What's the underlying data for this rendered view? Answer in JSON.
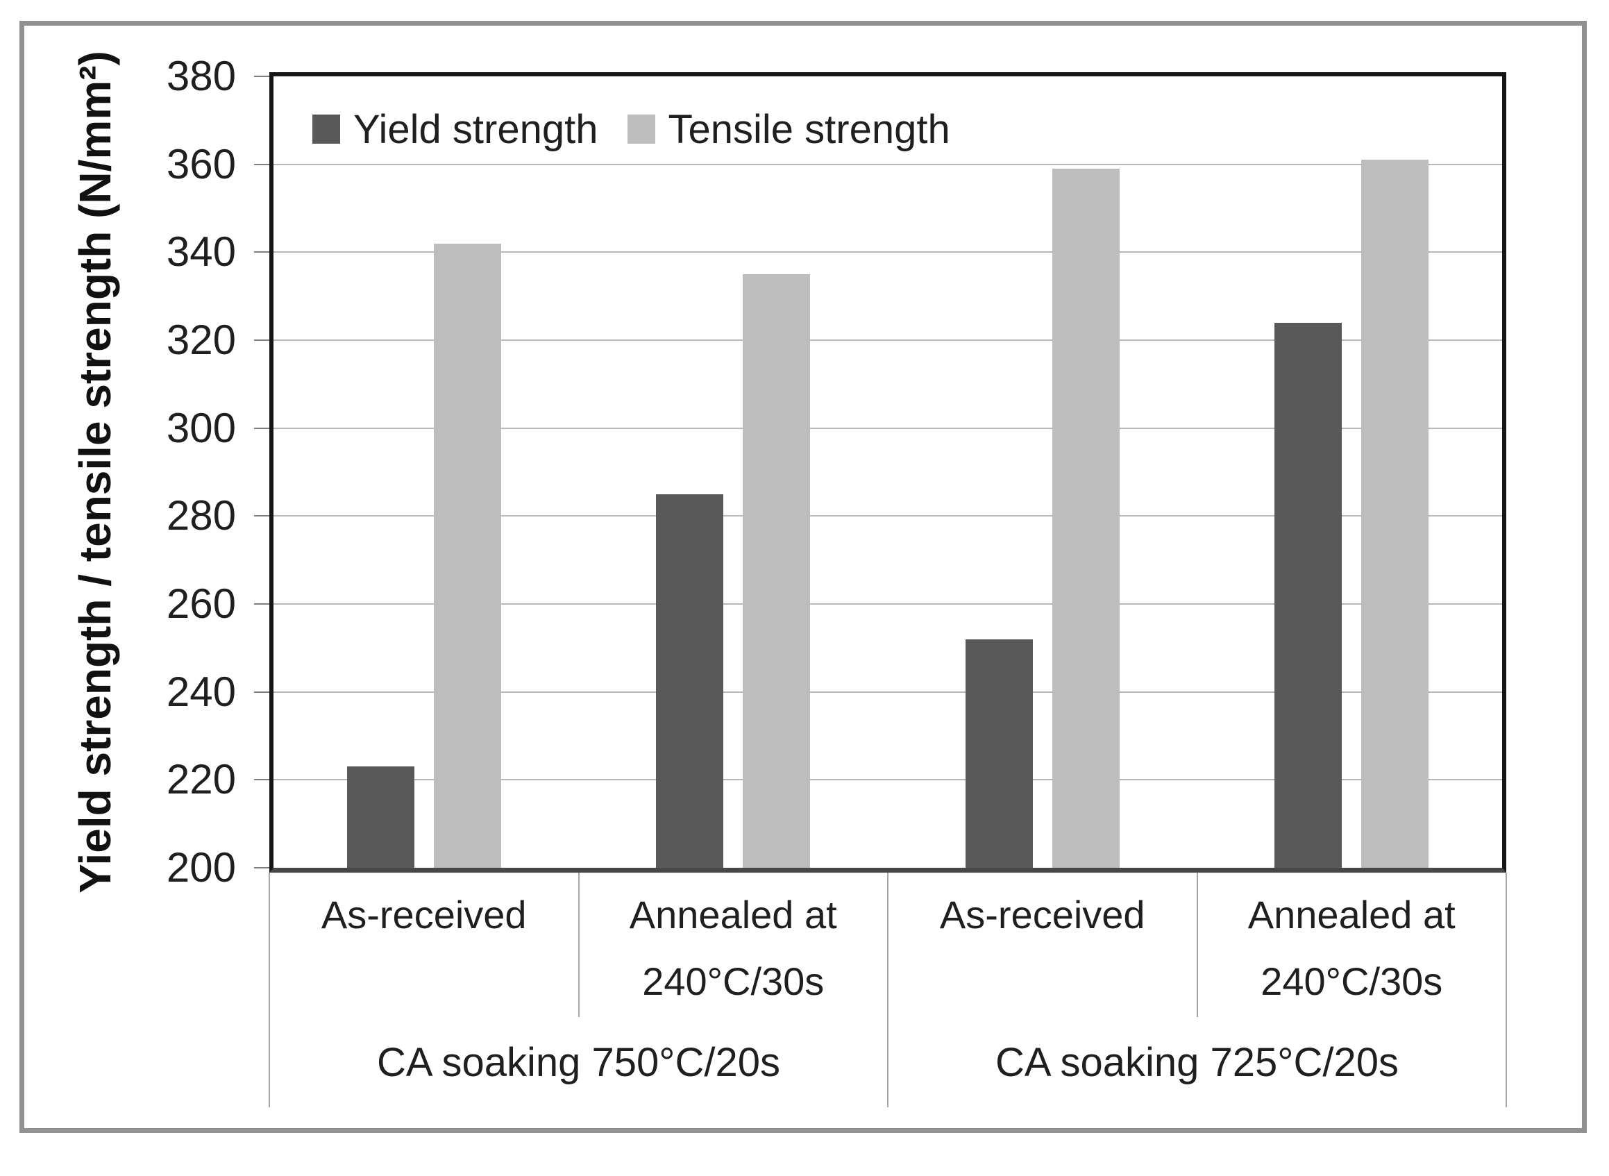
{
  "chart_data": {
    "type": "bar",
    "title": "",
    "ylabel": "Yield strength / tensile strength (N/mm²)",
    "xlabel": "",
    "ylim": [
      200,
      380
    ],
    "ytick_step": 20,
    "yticks": [
      200,
      220,
      240,
      260,
      280,
      300,
      320,
      340,
      360,
      380
    ],
    "grid": true,
    "legend_position": "top-left-inside",
    "groups": [
      {
        "label": "CA soaking 750°C/20s",
        "categories": [
          "As-received",
          "Annealed at 240°C/30s"
        ]
      },
      {
        "label": "CA soaking 725°C/20s",
        "categories": [
          "As-received",
          "Annealed at 240°C/30s"
        ]
      }
    ],
    "categories": [
      "As-received",
      "Annealed at 240°C/30s",
      "As-received",
      "Annealed at 240°C/30s"
    ],
    "series": [
      {
        "name": "Yield strength",
        "color": "#595959",
        "values": [
          223,
          285,
          252,
          324
        ]
      },
      {
        "name": "Tensile strength",
        "color": "#bdbdbd",
        "values": [
          342,
          335,
          359,
          361
        ]
      }
    ]
  },
  "colors": {
    "text": "#1f1f1f",
    "plot_border": "#161616",
    "axis_line": "#474747",
    "gridline": "#b7b7b7",
    "tick_dash": "#7f7f7f",
    "category_separator": "#a6a6a6",
    "outer_frame": "#919191",
    "background": "#ffffff"
  }
}
